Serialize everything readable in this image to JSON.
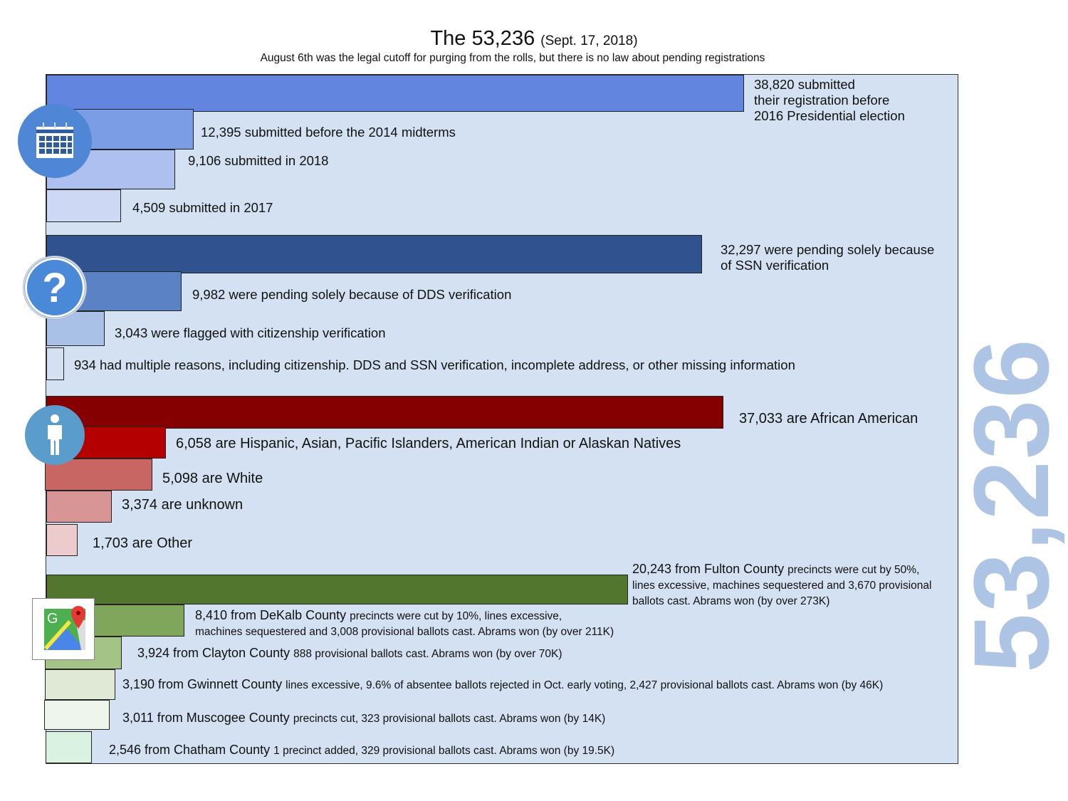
{
  "title": {
    "main": "The 53,236",
    "date": "(Sept. 17, 2018)"
  },
  "subtitle": "August 6th was the legal cutoff for purging from the rolls, but there is no law about pending registrations",
  "big_total": "53,236",
  "chart_data": {
    "type": "bar",
    "orientation": "horizontal",
    "title": "The 53,236 (Sept. 17, 2018)",
    "groups": [
      {
        "name": "Submission date",
        "icon": "calendar-icon",
        "items": [
          {
            "value": 38820,
            "label": "38,820 submitted their registration before 2016 Presidential election",
            "color": "#6286e0"
          },
          {
            "value": 12395,
            "label": "12,395 submitted before the 2014 midterms",
            "color": "#7b9de6"
          },
          {
            "value": 9106,
            "label": "9,106 submitted in 2018",
            "color": "#aec0f0"
          },
          {
            "value": 4509,
            "label": "4,509 submitted in 2017",
            "color": "#cdd8f4"
          }
        ]
      },
      {
        "name": "Pending reason",
        "icon": "question-icon",
        "items": [
          {
            "value": 32297,
            "label": "32,297 were pending solely because of SSN verification",
            "color": "#30528e"
          },
          {
            "value": 9982,
            "label": "9,982 were pending solely because of DDS verification",
            "color": "#5b82c4"
          },
          {
            "value": 3043,
            "label": "3,043 were flagged with citizenship verification",
            "color": "#a9c1e6"
          },
          {
            "value": 934,
            "label": "934 had multiple reasons, including citizenship. DDS and SSN verification, incomplete address, or other missing information",
            "color": "#d5e0f2"
          }
        ]
      },
      {
        "name": "Race",
        "icon": "person-icon",
        "items": [
          {
            "value": 37033,
            "label": "37,033 are African American",
            "color": "#850000"
          },
          {
            "value": 6058,
            "label": "6,058 are Hispanic, Asian, Pacific Islanders, American Indian or Alaskan Natives",
            "color": "#b50000"
          },
          {
            "value": 5098,
            "label": "5,098  are White",
            "color": "#c86664"
          },
          {
            "value": 3374,
            "label": "3,374 are unknown",
            "color": "#d89595"
          },
          {
            "value": 1703,
            "label": "1,703 are Other",
            "color": "#ebcbcb"
          }
        ]
      },
      {
        "name": "County",
        "icon": "map-icon",
        "items": [
          {
            "value": 20243,
            "label": "20,243 from Fulton County",
            "note": "precincts were cut by 50%, lines excessive, machines sequestered and 3,670 provisional ballots cast. Abrams won (by over 273K)",
            "color": "#53762f"
          },
          {
            "value": 8410,
            "label": "8,410 from DeKalb County",
            "note": "precincts were cut by 10%, lines excessive, machines sequestered and 3,008 provisional ballots cast. Abrams won (by over 211K)",
            "color": "#7fa65a"
          },
          {
            "value": 3924,
            "label": "3,924 from Clayton County",
            "note": "888 provisional ballots cast. Abrams won (by over 70K)",
            "color": "#a3c486"
          },
          {
            "value": 3190,
            "label": "3,190 from Gwinnett County",
            "note": "lines excessive, 9.6% of absentee ballots rejected in Oct. early voting, 2,427 provisional ballots cast. Abrams won (by 46K)",
            "color": "#e0e9d6"
          },
          {
            "value": 3011,
            "label": "3,011 from Muscogee County",
            "note": "precincts cut, 323 provisional ballots cast. Abrams won (by 14K)",
            "color": "#eef5ec"
          },
          {
            "value": 2546,
            "label": "2,546 from Chatham County",
            "note": "1 precinct added, 329 provisional ballots cast. Abrams won (by 19.5K)",
            "color": "#d9f2e2"
          }
        ]
      }
    ],
    "labels_split": {
      "g0_first": [
        "38,820 submitted",
        "their registration before",
        "2016 Presidential election"
      ],
      "g1_first": [
        "32,297 were pending solely because",
        "of SSN verification"
      ],
      "fulton_lines": [
        "precincts were cut by 50%,",
        "lines excessive, machines sequestered and 3,670 provisional",
        "ballots cast. Abrams won (by over 273K)"
      ],
      "dekalb_lines": [
        "precincts were cut by 10%, lines excessive,",
        "machines sequestered and 3,008 provisional ballots cast. Abrams won (by over 211K)"
      ]
    }
  }
}
